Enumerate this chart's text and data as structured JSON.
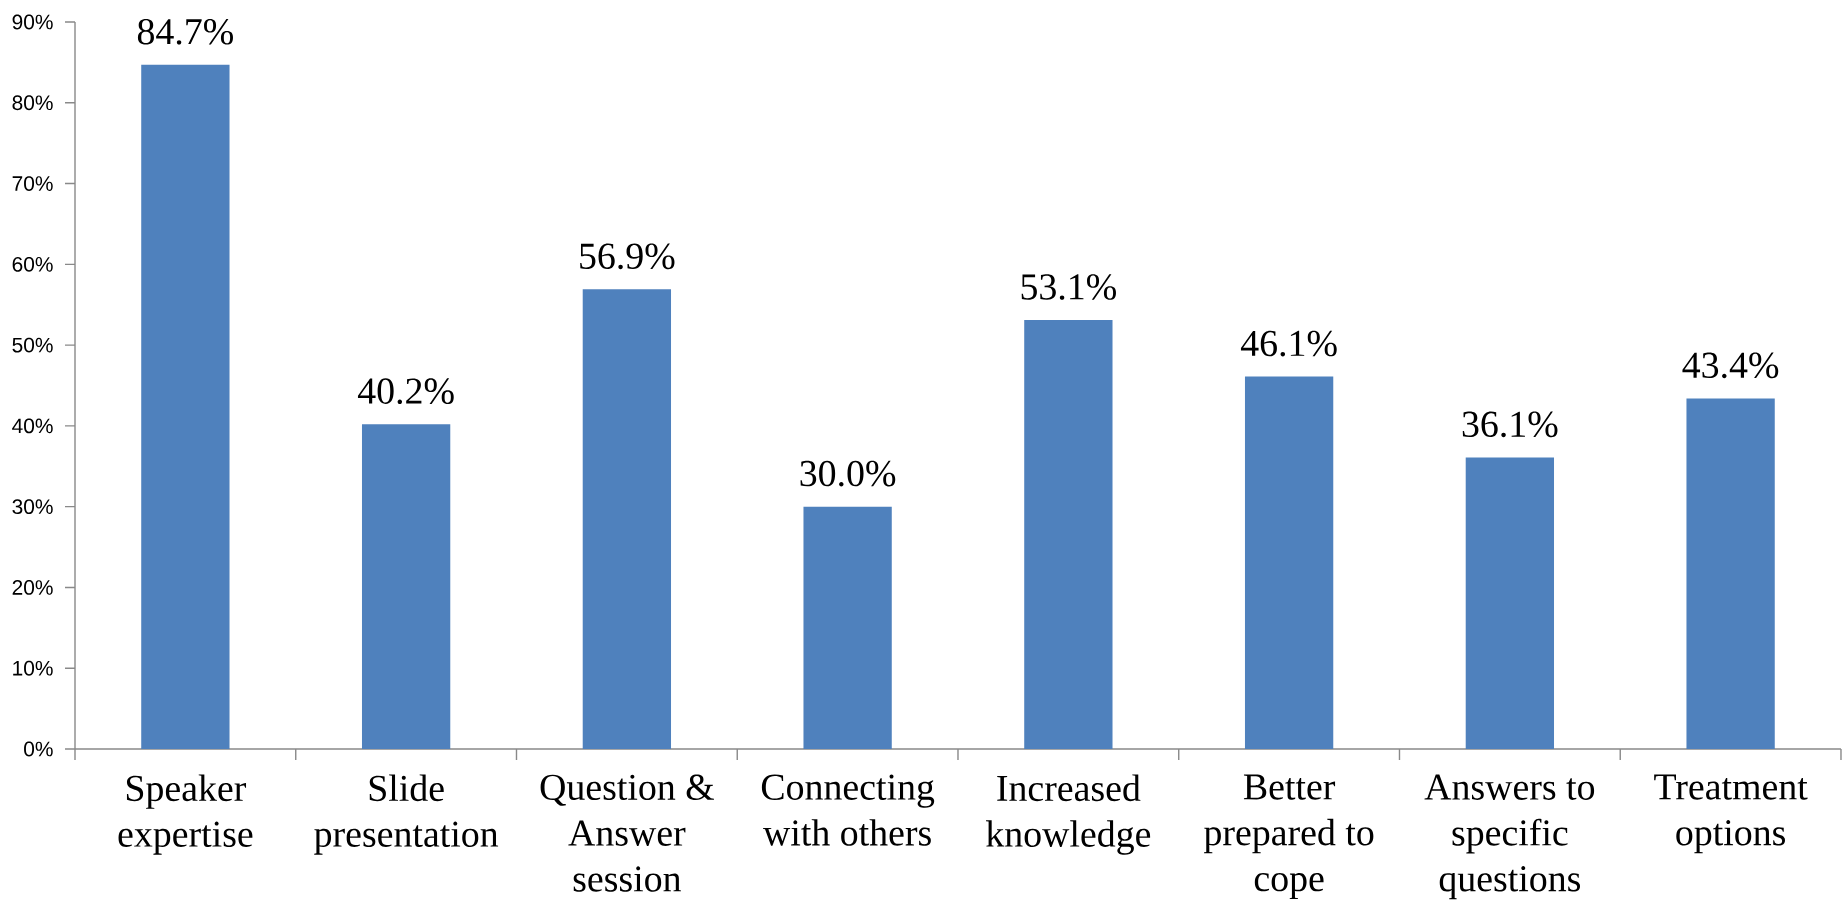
{
  "chart_data": {
    "type": "bar",
    "categories": [
      "Speaker expertise",
      "Slide presentation",
      "Question & Answer session",
      "Connecting with others",
      "Increased knowledge",
      "Better prepared to cope",
      "Answers to specific questions",
      "Treatment options"
    ],
    "values": [
      84.7,
      40.2,
      56.9,
      30.0,
      53.1,
      46.1,
      36.1,
      43.4
    ],
    "value_labels": [
      "84.7%",
      "40.2%",
      "56.9%",
      "30.0%",
      "53.1%",
      "46.1%",
      "36.1%",
      "43.4%"
    ],
    "color": "#4f81bd",
    "ylim": [
      0,
      90
    ],
    "yticks": [
      {
        "value": 0,
        "label": "0%"
      },
      {
        "value": 10,
        "label": "10%"
      },
      {
        "value": 20,
        "label": "20%"
      },
      {
        "value": 30,
        "label": "30%"
      },
      {
        "value": 40,
        "label": "40%"
      },
      {
        "value": 50,
        "label": "50%"
      },
      {
        "value": 60,
        "label": "60%"
      },
      {
        "value": 70,
        "label": "70%"
      },
      {
        "value": 80,
        "label": "80%"
      },
      {
        "value": 90,
        "label": "90%"
      }
    ]
  }
}
